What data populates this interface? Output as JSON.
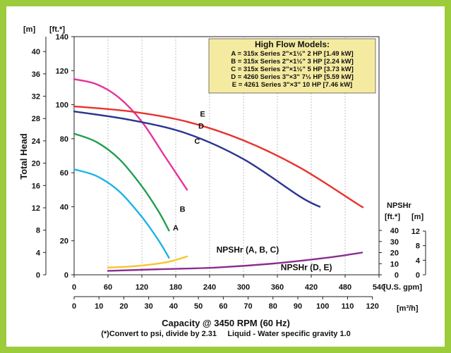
{
  "colors": {
    "frame": "#9ccb3b",
    "legend_bg": "#f5eba0",
    "A": "#1fb3e6",
    "B": "#1f9e4f",
    "C": "#e6339a",
    "D": "#2b3590",
    "E": "#e8332e",
    "npsh_abc": "#f7c52d",
    "npsh_de": "#8b2e8f"
  },
  "labels": {
    "left_unit_m": "[m]",
    "left_unit_ft": "[ft.*]",
    "y_title": "Total Head",
    "x_unit_gpm": "[U.S. gpm]",
    "x_unit_m3h": "[m³/h]",
    "x_title": "Capacity @ 3450 RPM (60 Hz)",
    "footer": "(*)Convert to psi, divide by 2.31     Liquid - Water specific gravity 1.0",
    "npshr_title": "NPSHr",
    "npshr_unit_ft": "[ft.*]",
    "npshr_unit_m": "[m]"
  },
  "legend": {
    "title": "High Flow Models:",
    "lines": [
      "A = 315x Series 2\"×1½\" 2 HP [1.49 kW]",
      "B = 315x Series 2\"×1½\" 3 HP [2.24 kW]",
      "C = 315x Series 2\"×1½\" 5 HP [3.73 kW]",
      "D = 4260 Series 3\"×3\" 7½ HP [5.59 kW]",
      "E = 4261 Series 3\"×3\" 10 HP [7.46 kW]"
    ]
  },
  "chart_data": {
    "type": "line",
    "x_unit": "U.S. gpm",
    "xlim": [
      0,
      540
    ],
    "x_ticks": [
      0,
      60,
      120,
      180,
      240,
      300,
      360,
      420,
      480,
      540
    ],
    "x2_ticks": [
      0,
      10,
      20,
      30,
      40,
      50,
      60,
      70,
      80,
      90,
      100,
      110,
      120
    ],
    "y_ft_ticks": [
      0,
      20,
      40,
      60,
      80,
      100,
      120,
      140
    ],
    "y_m_ticks": [
      0,
      4,
      8,
      12,
      16,
      20,
      24,
      28,
      32,
      36,
      40
    ],
    "ylim_ft": [
      0,
      140
    ],
    "npshr_ft_ticks": [
      0,
      10,
      20,
      30,
      40
    ],
    "npshr_m_ticks": [
      0,
      4,
      8,
      12
    ],
    "npshr_ylim_ft": [
      0,
      45
    ],
    "grid": "vertical",
    "legend_position": "top-right",
    "series": [
      {
        "name": "A",
        "x": [
          0,
          40,
          80,
          120,
          150,
          168
        ],
        "y": [
          62,
          58,
          49,
          34,
          20,
          10
        ]
      },
      {
        "name": "B",
        "x": [
          0,
          40,
          80,
          120,
          150,
          168
        ],
        "y": [
          83,
          78,
          68,
          52,
          37,
          26
        ]
      },
      {
        "name": "C",
        "x": [
          0,
          40,
          80,
          120,
          160,
          200
        ],
        "y": [
          115,
          112,
          104,
          90,
          70,
          50
        ]
      },
      {
        "name": "D",
        "x": [
          0,
          100,
          200,
          300,
          400,
          435
        ],
        "y": [
          96,
          91,
          83,
          68,
          46,
          40
        ]
      },
      {
        "name": "E",
        "x": [
          0,
          100,
          200,
          300,
          400,
          500,
          510
        ],
        "y": [
          99,
          96,
          90,
          79,
          63,
          42,
          40
        ]
      }
    ],
    "npshr_series": [
      {
        "name": "NPSHr (A, B, C)",
        "x": [
          60,
          100,
          140,
          170,
          200
        ],
        "y_ft": [
          6.5,
          7.5,
          9.5,
          12,
          16.5
        ]
      },
      {
        "name": "NPSHr (D, E)",
        "x": [
          60,
          150,
          250,
          350,
          450,
          510
        ],
        "y_ft": [
          3.5,
          5,
          6.5,
          10,
          15.5,
          20
        ]
      }
    ],
    "curve_labels": [
      {
        "text": "A",
        "x": 175,
        "y": 26
      },
      {
        "text": "B",
        "x": 187,
        "y": 37
      },
      {
        "text": "C",
        "x": 213,
        "y": 77
      },
      {
        "text": "D",
        "x": 220,
        "y": 86
      },
      {
        "text": "E",
        "x": 223,
        "y": 93
      }
    ],
    "npshr_labels": [
      {
        "text": "NPSHr (A, B, C)",
        "x": 252,
        "y_ft": 20
      },
      {
        "text": "NPSHr (D, E)",
        "x": 366,
        "y_ft": 4
      }
    ]
  }
}
